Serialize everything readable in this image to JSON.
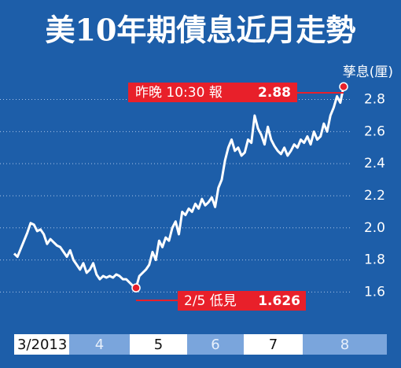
{
  "chart_data": {
    "type": "line",
    "title": "美10年期債息近月走勢",
    "y_label": "孳息(厘)",
    "series": [
      {
        "name": "美10年期債息",
        "color": "#ffffff",
        "values": [
          1.84,
          1.82,
          1.87,
          1.92,
          1.97,
          2.03,
          2.02,
          1.98,
          1.99,
          1.96,
          1.9,
          1.93,
          1.91,
          1.89,
          1.88,
          1.85,
          1.82,
          1.86,
          1.8,
          1.77,
          1.74,
          1.78,
          1.72,
          1.74,
          1.78,
          1.71,
          1.68,
          1.7,
          1.69,
          1.7,
          1.69,
          1.71,
          1.7,
          1.68,
          1.68,
          1.66,
          1.64,
          1.626,
          1.7,
          1.72,
          1.74,
          1.77,
          1.85,
          1.8,
          1.92,
          1.88,
          1.94,
          1.92,
          2.0,
          2.04,
          1.96,
          2.1,
          2.08,
          2.12,
          2.1,
          2.15,
          2.12,
          2.18,
          2.14,
          2.16,
          2.19,
          2.13,
          2.25,
          2.3,
          2.42,
          2.5,
          2.55,
          2.48,
          2.5,
          2.45,
          2.47,
          2.55,
          2.53,
          2.7,
          2.62,
          2.58,
          2.52,
          2.63,
          2.55,
          2.51,
          2.48,
          2.46,
          2.5,
          2.45,
          2.48,
          2.52,
          2.5,
          2.55,
          2.53,
          2.57,
          2.52,
          2.6,
          2.55,
          2.57,
          2.65,
          2.6,
          2.7,
          2.75,
          2.82,
          2.78,
          2.88
        ]
      }
    ],
    "months": [
      "3/2013",
      "4",
      "5",
      "6",
      "7",
      "8"
    ],
    "ylim": [
      1.46,
      2.93
    ],
    "yticks": [
      1.6,
      1.8,
      {
        "value": 2,
        "label": "2.0"
      },
      2.2,
      2.4,
      2.6,
      2.8
    ],
    "grid": true,
    "annotations": [
      {
        "text": "昨晚 10:30 報",
        "value": 2.88
      },
      {
        "text": "2/5 低見",
        "value": 1.626
      }
    ]
  }
}
